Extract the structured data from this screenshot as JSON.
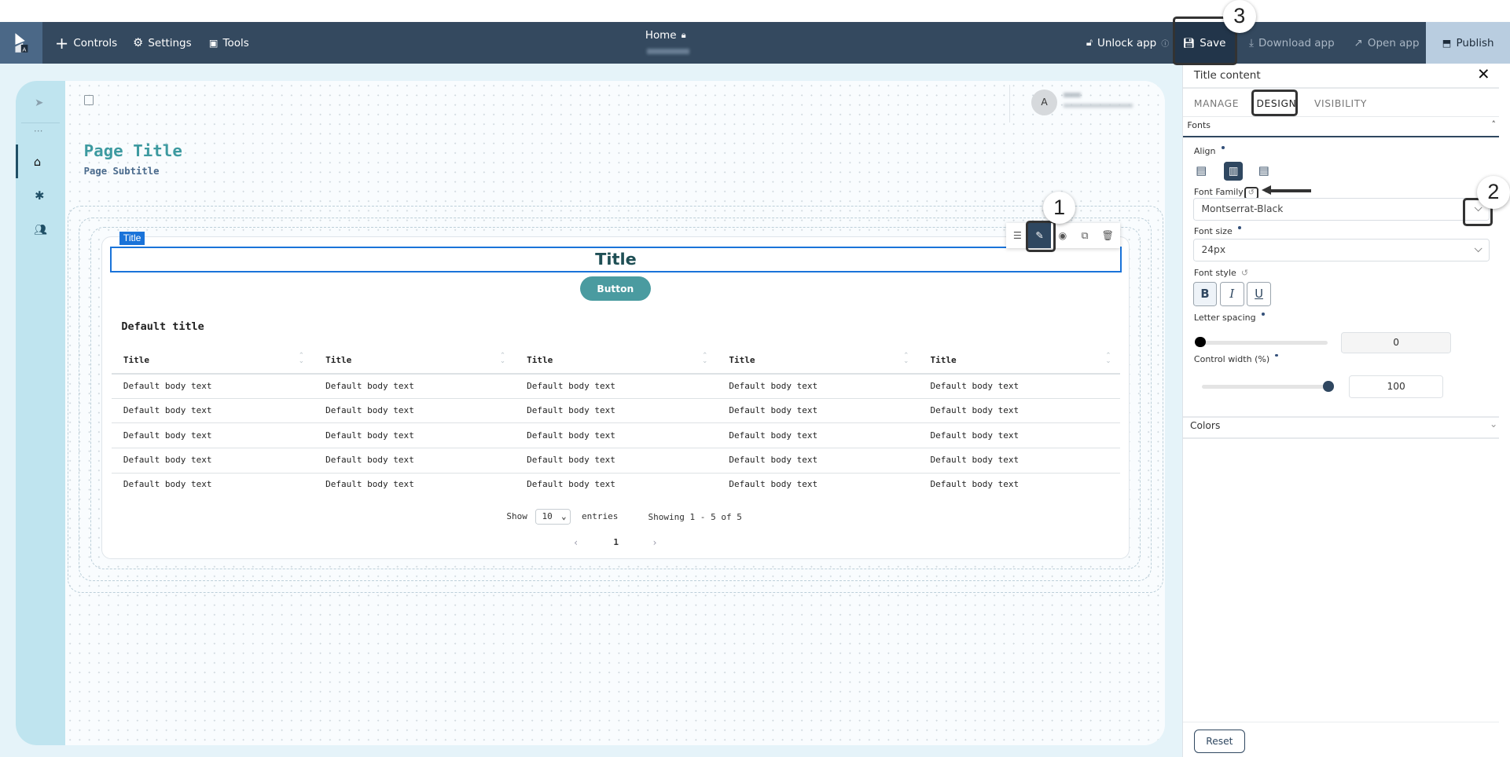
{
  "header": {
    "controls": "Controls",
    "settings": "Settings",
    "tools": "Tools",
    "page_name": "Home",
    "unlock": "Unlock app",
    "save": "Save",
    "download": "Download app",
    "open": "Open app",
    "publish": "Publish"
  },
  "colors": {
    "header": "#34495f",
    "accent": "#1a73d9",
    "teal": "#3d9aa0",
    "button": "#4a9ba0"
  },
  "user": {
    "avatar_initial": "A"
  },
  "page": {
    "title": "Page Title",
    "subtitle": "Page Subtitle"
  },
  "canvas": {
    "selected_tag": "Title",
    "title_text": "Title",
    "button_label": "Button",
    "table": {
      "title": "Default title",
      "columns": [
        "Title",
        "Title",
        "Title",
        "Title",
        "Title"
      ],
      "rows": [
        [
          "Default body text",
          "Default body text",
          "Default body text",
          "Default body text",
          "Default body text"
        ],
        [
          "Default body text",
          "Default body text",
          "Default body text",
          "Default body text",
          "Default body text"
        ],
        [
          "Default body text",
          "Default body text",
          "Default body text",
          "Default body text",
          "Default body text"
        ],
        [
          "Default body text",
          "Default body text",
          "Default body text",
          "Default body text",
          "Default body text"
        ],
        [
          "Default body text",
          "Default body text",
          "Default body text",
          "Default body text",
          "Default body text"
        ]
      ],
      "show": "Show",
      "page_size": "10",
      "entries": "entries",
      "showing": "Showing 1 - 5 of 5",
      "current_page": "1"
    }
  },
  "panel": {
    "title": "Title content",
    "tabs": [
      "MANAGE",
      "DESIGN",
      "VISIBILITY"
    ],
    "active_tab": "DESIGN",
    "fonts_section": "Fonts",
    "align_label": "Align",
    "align_selected": "center",
    "font_family_label": "Font Family",
    "font_family_value": "Montserrat-Black",
    "font_size_label": "Font size",
    "font_size_value": "24px",
    "font_style_label": "Font style",
    "styles": [
      "B",
      "I",
      "U"
    ],
    "bold_active": true,
    "letter_spacing_label": "Letter spacing",
    "letter_spacing_value": "0",
    "control_width_label": "Control width (%)",
    "control_width_value": "100",
    "colors_section": "Colors",
    "reset": "Reset"
  },
  "annotations": [
    "1",
    "2",
    "3"
  ]
}
